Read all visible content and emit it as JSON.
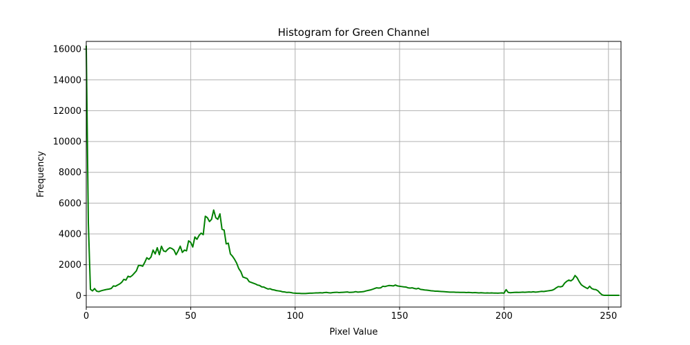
{
  "chart_data": {
    "type": "line",
    "title": "Histogram for Green Channel",
    "xlabel": "Pixel Value",
    "ylabel": "Frequency",
    "xlim": [
      0,
      256
    ],
    "ylim": [
      -750,
      16500
    ],
    "xticks": [
      0,
      50,
      100,
      150,
      200,
      250
    ],
    "yticks": [
      0,
      2000,
      4000,
      6000,
      8000,
      10000,
      12000,
      14000,
      16000
    ],
    "grid": true,
    "series": [
      {
        "color": "#008000",
        "values": [
          16200,
          4700,
          400,
          300,
          450,
          280,
          250,
          300,
          340,
          370,
          400,
          420,
          460,
          620,
          600,
          680,
          750,
          860,
          1050,
          1000,
          1250,
          1200,
          1300,
          1450,
          1600,
          1950,
          1950,
          1900,
          2150,
          2450,
          2350,
          2500,
          2950,
          2700,
          3100,
          2650,
          3200,
          2900,
          2850,
          3000,
          3100,
          3050,
          2950,
          2650,
          2900,
          3200,
          2800,
          2950,
          2900,
          3550,
          3450,
          3150,
          3800,
          3650,
          3900,
          4050,
          3950,
          5150,
          5050,
          4800,
          4950,
          5550,
          5050,
          4950,
          5300,
          4300,
          4250,
          3350,
          3400,
          2700,
          2550,
          2350,
          2100,
          1750,
          1550,
          1200,
          1150,
          1100,
          900,
          850,
          800,
          750,
          680,
          650,
          560,
          550,
          480,
          420,
          440,
          380,
          360,
          320,
          300,
          280,
          240,
          230,
          200,
          210,
          190,
          160,
          150,
          140,
          140,
          130,
          130,
          130,
          140,
          150,
          150,
          160,
          170,
          170,
          180,
          170,
          190,
          200,
          180,
          170,
          190,
          200,
          210,
          190,
          200,
          210,
          220,
          230,
          200,
          210,
          220,
          250,
          220,
          230,
          240,
          260,
          300,
          330,
          360,
          400,
          450,
          500,
          480,
          500,
          600,
          580,
          620,
          650,
          640,
          620,
          680,
          620,
          600,
          580,
          560,
          550,
          500,
          480,
          500,
          460,
          430,
          470,
          400,
          380,
          360,
          350,
          330,
          310,
          300,
          280,
          280,
          270,
          260,
          250,
          240,
          230,
          220,
          220,
          220,
          210,
          210,
          200,
          200,
          200,
          190,
          200,
          190,
          180,
          190,
          180,
          170,
          180,
          170,
          160,
          170,
          160,
          170,
          160,
          160,
          150,
          160,
          170,
          150,
          380,
          200,
          180,
          190,
          200,
          210,
          200,
          210,
          220,
          210,
          220,
          230,
          220,
          240,
          220,
          230,
          250,
          270,
          260,
          280,
          300,
          320,
          340,
          400,
          500,
          580,
          560,
          600,
          800,
          920,
          1000,
          950,
          1050,
          1300,
          1150,
          900,
          700,
          600,
          520,
          450,
          600,
          450,
          400,
          380,
          300,
          150,
          40,
          10,
          10,
          10,
          10,
          10,
          10,
          10,
          10
        ]
      }
    ]
  }
}
